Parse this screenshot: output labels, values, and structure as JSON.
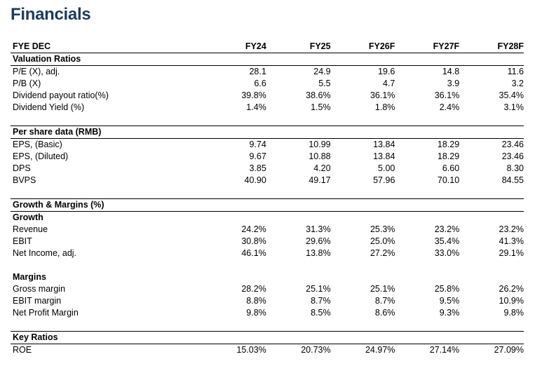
{
  "title": "Financials",
  "header": {
    "label": "FYE DEC",
    "years": [
      "FY24",
      "FY25",
      "FY26F",
      "FY27F",
      "FY28F"
    ]
  },
  "valuation": {
    "heading": "Valuation Ratios",
    "rows": [
      {
        "label": "P/E (X), adj.",
        "values": [
          "28.1",
          "24.9",
          "19.6",
          "14.8",
          "11.6"
        ]
      },
      {
        "label": "P/B (X)",
        "values": [
          "6.6",
          "5.5",
          "4.7",
          "3.9",
          "3.2"
        ]
      },
      {
        "label": "Dividend payout ratio(%)",
        "values": [
          "39.8%",
          "38.6%",
          "36.1%",
          "36.1%",
          "35.4%"
        ]
      },
      {
        "label": "Dividend Yield (%)",
        "values": [
          "1.4%",
          "1.5%",
          "1.8%",
          "2.4%",
          "3.1%"
        ]
      }
    ]
  },
  "per_share": {
    "heading": "Per share data (RMB)",
    "rows": [
      {
        "label": "EPS, (Basic)",
        "values": [
          "9.74",
          "10.99",
          "13.84",
          "18.29",
          "23.46"
        ]
      },
      {
        "label": "EPS, (Diluted)",
        "values": [
          "9.67",
          "10.88",
          "13.84",
          "18.29",
          "23.46"
        ]
      },
      {
        "label": "DPS",
        "values": [
          "3.85",
          "4.20",
          "5.00",
          "6.60",
          "8.30"
        ]
      },
      {
        "label": "BVPS",
        "values": [
          "40.90",
          "49.17",
          "57.96",
          "70.10",
          "84.55"
        ]
      }
    ]
  },
  "growth_margins": {
    "heading": "Growth & Margins (%)",
    "growth_heading": "Growth",
    "growth_rows": [
      {
        "label": "Revenue",
        "values": [
          "24.2%",
          "31.3%",
          "25.3%",
          "23.2%",
          "23.2%"
        ]
      },
      {
        "label": "EBIT",
        "values": [
          "30.8%",
          "29.6%",
          "25.0%",
          "35.4%",
          "41.3%"
        ]
      },
      {
        "label": "Net Income, adj.",
        "values": [
          "46.1%",
          "13.8%",
          "27.2%",
          "33.0%",
          "29.1%"
        ]
      }
    ],
    "margins_heading": "Margins",
    "margin_rows": [
      {
        "label": "Gross margin",
        "values": [
          "28.2%",
          "25.1%",
          "25.1%",
          "25.8%",
          "26.2%"
        ]
      },
      {
        "label": "EBIT margin",
        "values": [
          "8.8%",
          "8.7%",
          "8.7%",
          "9.5%",
          "10.9%"
        ]
      },
      {
        "label": "Net Profit Margin",
        "values": [
          "9.8%",
          "8.5%",
          "8.6%",
          "9.3%",
          "9.8%"
        ]
      }
    ]
  },
  "key_ratios": {
    "heading": "Key Ratios",
    "rows": [
      {
        "label": "ROE",
        "values": [
          "15.03%",
          "20.73%",
          "24.97%",
          "27.14%",
          "27.09%"
        ]
      }
    ]
  }
}
